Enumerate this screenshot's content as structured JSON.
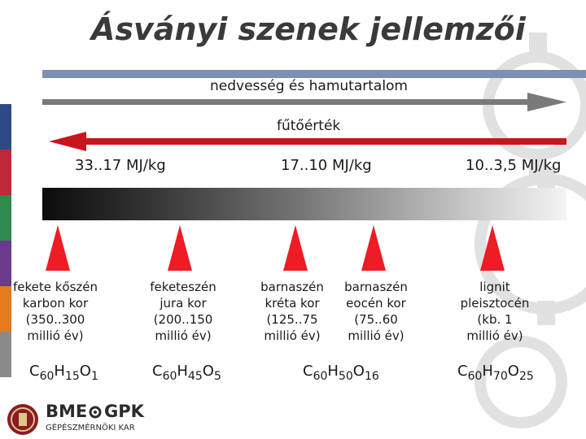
{
  "title": "Ásványi szenek jellemzői",
  "arrows": {
    "moisture": {
      "label": "nedvesség és hamutartalom",
      "color": "#7a7a7a"
    },
    "calorific": {
      "label": "fűtőérték",
      "color": "#c8161d"
    }
  },
  "energy_ranges": [
    "33..17 MJ/kg",
    "17..10 MJ/kg",
    "10..3,5 MJ/kg"
  ],
  "coal_types": [
    {
      "description": "fekete kőszén\nkarbon kor\n(350..300\nmillió év)"
    },
    {
      "description": "feketeszén\njura kor\n(200..150\nmillió év)"
    },
    {
      "description": "barnaszén\nkréta kor\n(125..75\nmillió év)"
    },
    {
      "description": "barnaszén\neocén kor\n(75..60\nmillió év)"
    },
    {
      "description": "lignit\npleisztocén\n(kb. 1\nmillió év)"
    }
  ],
  "formulas": [
    {
      "c": "C",
      "c_n": "60",
      "h": "H",
      "h_n": "15",
      "o": "O",
      "o_n": "1"
    },
    {
      "c": "C",
      "c_n": "60",
      "h": "H",
      "h_n": "45",
      "o": "O",
      "o_n": "5"
    },
    {
      "c": "C",
      "c_n": "60",
      "h": "H",
      "h_n": "50",
      "o": "O",
      "o_n": "16"
    },
    {
      "c": "C",
      "c_n": "60",
      "h": "H",
      "h_n": "70",
      "o": "O",
      "o_n": "25"
    }
  ],
  "logo": {
    "text_main": "BME",
    "text_right": "GPK",
    "subtitle": "GÉPÉSZMÉRNÖKI KAR"
  },
  "colors": {
    "accent_rule": "#7f8fb4",
    "triangle": "#ee1c24",
    "side_stripes": [
      "#2e4a86",
      "#c0283a",
      "#2f8a4e",
      "#6b3a8a",
      "#e47b1e",
      "#8a8a8a"
    ]
  }
}
